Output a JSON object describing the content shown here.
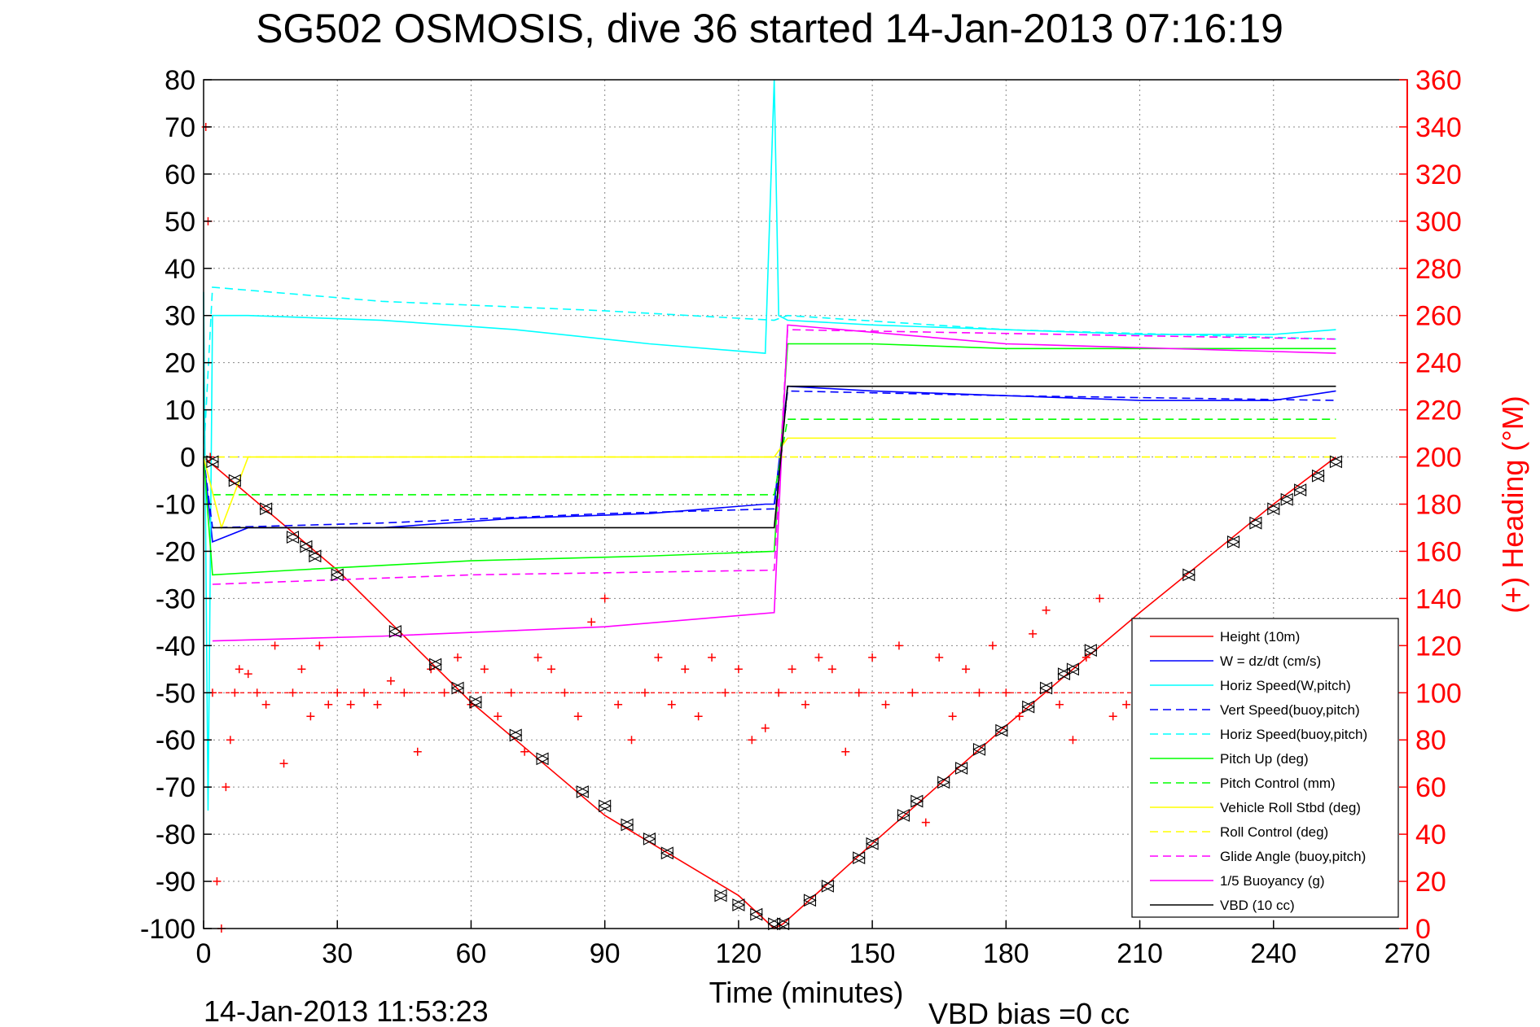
{
  "chart_data": {
    "type": "line",
    "title": "SG502 OSMOSIS, dive 36 started 14-Jan-2013 07:16:19",
    "xlabel": "Time (minutes)",
    "ylabel": "",
    "ylabel_right": "(+) Heading (°M)",
    "xlim": [
      0,
      270
    ],
    "ylim": [
      -100,
      80
    ],
    "ylim_right": [
      0,
      360
    ],
    "x_ticks": [
      0,
      30,
      60,
      90,
      120,
      150,
      180,
      210,
      240,
      270
    ],
    "y_ticks": [
      80,
      70,
      60,
      50,
      40,
      30,
      20,
      10,
      0,
      -10,
      -20,
      -30,
      -40,
      -50,
      -60,
      -70,
      -80,
      -90,
      -100
    ],
    "y_ticks_right": [
      360,
      340,
      320,
      300,
      280,
      260,
      240,
      220,
      200,
      180,
      160,
      140,
      120,
      100,
      80,
      60,
      40,
      20,
      0
    ],
    "grid": true,
    "legend_position": "bottom-right",
    "footer_left": "14-Jan-2013 11:53:23",
    "footer_right": "VBD bias =0 cc",
    "series": [
      {
        "name": "Height (10m)",
        "color": "#ff0000",
        "style": "solid",
        "x": [
          0,
          30,
          60,
          90,
          120,
          128,
          130,
          150,
          180,
          210,
          240,
          254
        ],
        "y": [
          0,
          -24,
          -52,
          -76,
          -93,
          -100,
          -99,
          -82,
          -57,
          -33,
          -10,
          0
        ]
      },
      {
        "name": "W = dz/dt (cm/s)",
        "color": "#0000ff",
        "style": "solid",
        "x": [
          0,
          2,
          10,
          40,
          70,
          100,
          126,
          128,
          131,
          150,
          180,
          210,
          240,
          254
        ],
        "y": [
          0,
          -18,
          -15,
          -15,
          -13,
          -12,
          -10,
          -10,
          15,
          14,
          13,
          12,
          12,
          14
        ]
      },
      {
        "name": "Horiz Speed(W,pitch)",
        "color": "#00ffff",
        "style": "solid",
        "x": [
          0,
          1,
          2,
          10,
          40,
          70,
          100,
          126,
          128,
          129,
          131,
          150,
          180,
          210,
          240,
          254
        ],
        "y": [
          35,
          -75,
          30,
          30,
          29,
          27,
          24,
          22,
          80,
          30,
          29,
          28,
          27,
          26,
          26,
          27
        ]
      },
      {
        "name": "Vert Speed(buoy,pitch)",
        "color": "#0000ff",
        "style": "dashed",
        "x": [
          0,
          2,
          40,
          90,
          128,
          131,
          180,
          254
        ],
        "y": [
          0,
          -15,
          -14,
          -12,
          -11,
          14,
          13,
          12
        ]
      },
      {
        "name": "Horiz Speed(buoy,pitch)",
        "color": "#00ffff",
        "style": "dashed",
        "x": [
          0,
          2,
          40,
          90,
          128,
          131,
          180,
          254
        ],
        "y": [
          0,
          36,
          33,
          31,
          29,
          30,
          27,
          25
        ]
      },
      {
        "name": "Pitch Up (deg)",
        "color": "#00ff00",
        "style": "solid",
        "x": [
          0,
          2,
          20,
          60,
          100,
          128,
          131,
          150,
          180,
          210,
          254
        ],
        "y": [
          0,
          -25,
          -24,
          -22,
          -21,
          -20,
          24,
          24,
          23,
          23,
          23
        ]
      },
      {
        "name": "Pitch Control (mm)",
        "color": "#00ff00",
        "style": "dashed",
        "x": [
          2,
          128,
          131,
          254
        ],
        "y": [
          -8,
          -8,
          8,
          8
        ]
      },
      {
        "name": "Vehicle Roll Stbd (deg)",
        "color": "#ffff00",
        "style": "solid",
        "x": [
          0,
          4,
          10,
          60,
          128,
          131,
          180,
          254
        ],
        "y": [
          0,
          -15,
          0,
          0,
          0,
          4,
          4,
          4
        ]
      },
      {
        "name": "Roll Control (deg)",
        "color": "#ffff00",
        "style": "dashed",
        "x": [
          0,
          128,
          131,
          254
        ],
        "y": [
          0,
          0,
          0,
          0
        ]
      },
      {
        "name": "Glide Angle (buoy,pitch)",
        "color": "#ff00ff",
        "style": "dashed",
        "x": [
          2,
          60,
          128,
          131,
          254
        ],
        "y": [
          -27,
          -25,
          -24,
          27,
          25
        ]
      },
      {
        "name": "1/5 Buoyancy (g)",
        "color": "#ff00ff",
        "style": "solid",
        "x": [
          2,
          40,
          90,
          128,
          131,
          180,
          254
        ],
        "y": [
          -39,
          -38,
          -36,
          -33,
          28,
          24,
          22
        ]
      },
      {
        "name": "VBD (10 cc)",
        "color": "#000000",
        "style": "solid",
        "x": [
          2,
          128,
          131,
          254
        ],
        "y": [
          -15,
          -15,
          15,
          15
        ]
      }
    ],
    "heading_series": {
      "color": "#ff0000",
      "marker": "+",
      "axis": "right",
      "x": [
        0.5,
        1,
        1.5,
        2,
        3,
        4,
        5,
        6,
        7,
        8,
        10,
        12,
        14,
        16,
        18,
        20,
        22,
        24,
        26,
        28,
        30,
        33,
        36,
        39,
        42,
        45,
        48,
        51,
        54,
        57,
        60,
        63,
        66,
        69,
        72,
        75,
        78,
        81,
        84,
        87,
        90,
        93,
        96,
        99,
        102,
        105,
        108,
        111,
        114,
        117,
        120,
        123,
        126,
        129,
        132,
        135,
        138,
        141,
        144,
        147,
        150,
        153,
        156,
        159,
        162,
        165,
        168,
        171,
        174,
        177,
        180,
        183,
        186,
        189,
        192,
        195,
        198,
        201,
        204,
        207,
        210
      ],
      "y": [
        340,
        300,
        200,
        100,
        20,
        0,
        60,
        80,
        100,
        110,
        108,
        100,
        95,
        120,
        70,
        100,
        110,
        90,
        120,
        95,
        100,
        95,
        100,
        95,
        105,
        100,
        75,
        110,
        100,
        115,
        95,
        110,
        90,
        100,
        75,
        115,
        110,
        100,
        90,
        130,
        140,
        95,
        80,
        100,
        115,
        95,
        110,
        90,
        115,
        100,
        110,
        80,
        85,
        100,
        110,
        95,
        115,
        110,
        75,
        100,
        115,
        95,
        120,
        100,
        45,
        115,
        90,
        110,
        100,
        120,
        100,
        90,
        125,
        135,
        95,
        80,
        115,
        140,
        90,
        95,
        100
      ]
    },
    "heading_ref": {
      "value_right": 100,
      "color": "#ff0000",
      "style": "dashed"
    },
    "depth_markers": {
      "marker": "triangles",
      "color": "#000000",
      "x": [
        2,
        7,
        14,
        20,
        23,
        25,
        30,
        43,
        52,
        57,
        61,
        70,
        76,
        85,
        90,
        95,
        100,
        104,
        116,
        120,
        124,
        128,
        130,
        136,
        140,
        147,
        150,
        157,
        160,
        166,
        170,
        174,
        179,
        185,
        189,
        193,
        195,
        199,
        221,
        231,
        236,
        240,
        243,
        246,
        250,
        254
      ],
      "y": [
        -1,
        -5,
        -11,
        -17,
        -19,
        -21,
        -25,
        -37,
        -44,
        -49,
        -52,
        -59,
        -64,
        -71,
        -74,
        -78,
        -81,
        -84,
        -93,
        -95,
        -97,
        -99,
        -99,
        -94,
        -91,
        -85,
        -82,
        -76,
        -73,
        -69,
        -66,
        -62,
        -58,
        -53,
        -49,
        -46,
        -45,
        -41,
        -25,
        -18,
        -14,
        -11,
        -9,
        -7,
        -4,
        -1
      ]
    }
  }
}
